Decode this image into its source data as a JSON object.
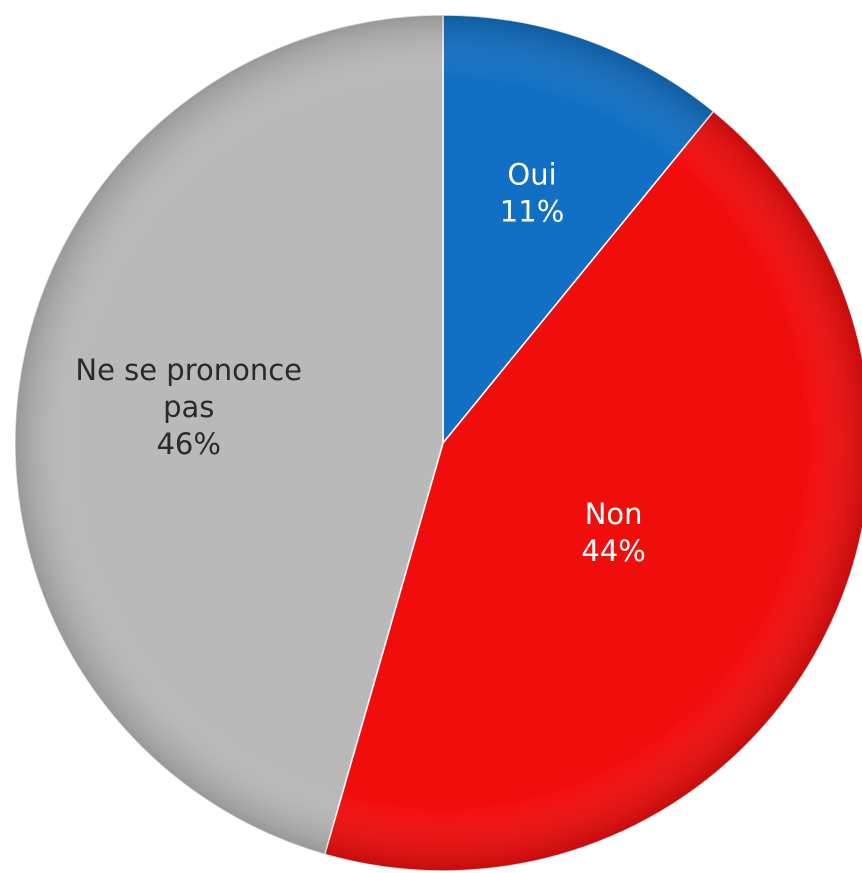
{
  "chart_data": {
    "type": "pie",
    "title": "",
    "slices": [
      {
        "label": "Oui",
        "value": 11,
        "display": "11%",
        "color": "#1270c4",
        "text_color": "#ffffff"
      },
      {
        "label": "Non",
        "value": 44,
        "display": "44%",
        "color": "#f20d0d",
        "text_color": "#ffffff"
      },
      {
        "label": "Ne se prononce pas",
        "value": 46,
        "display": "46%",
        "color": "#b9b9b9",
        "text_color": "#2a2a2a"
      }
    ],
    "start_angle": "12 o'clock",
    "direction": "clockwise",
    "legend": "none",
    "labels_position": "inside"
  }
}
